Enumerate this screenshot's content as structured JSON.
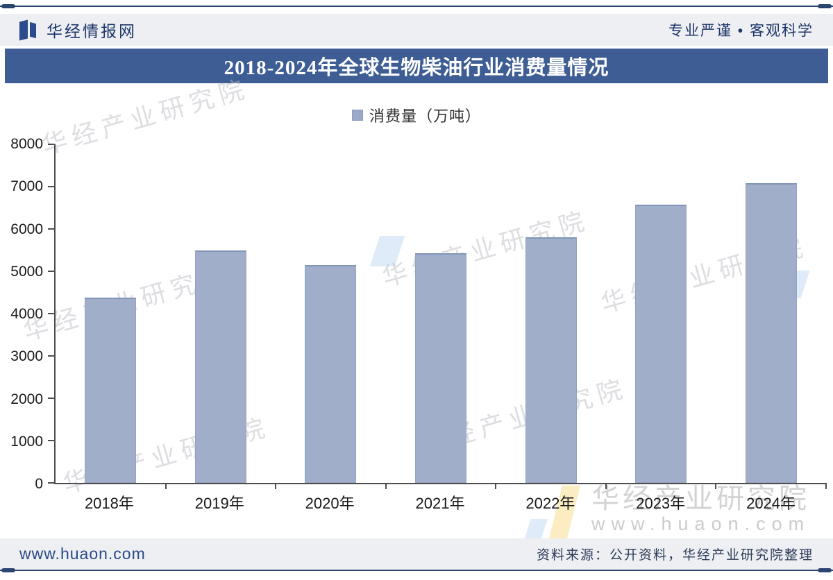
{
  "header": {
    "site_name": "华经情报网",
    "slogan": "专业严谨 • 客观科学",
    "logo_icon": "open-book-logo"
  },
  "title_bar": {
    "title": "2018-2024年全球生物柴油行业消费量情况"
  },
  "chart_data": {
    "type": "bar",
    "title": "2018-2024年全球生物柴油行业消费量情况",
    "legend": {
      "label": "消费量（万吨）",
      "position": "top-center",
      "marker_color": "#9aa9c7"
    },
    "categories": [
      "2018年",
      "2019年",
      "2020年",
      "2021年",
      "2022年",
      "2023年",
      "2024年"
    ],
    "series": [
      {
        "name": "消费量（万吨）",
        "values": [
          4370,
          5490,
          5150,
          5430,
          5810,
          6570,
          7090
        ]
      }
    ],
    "ylim": [
      0,
      8000
    ],
    "ytick_step": 1000,
    "grid": false,
    "bar_color": "#a0aec9",
    "axis_color": "#4d4d4d"
  },
  "watermark": {
    "diagonal_text": "华经产业研究院",
    "corner_text": "华经产业研究院",
    "corner_url": "www.huaon.com"
  },
  "footer": {
    "site_url": "www.huaon.com",
    "source_note": "资料来源：公开资料，华经产业研究院整理"
  },
  "colors": {
    "title_bar_bg": "#3d5d94",
    "band_bg": "#edeff3",
    "rule_color": "#2b4470",
    "bar_fill": "#a0aec9",
    "accent_navy": "#1d3568"
  }
}
